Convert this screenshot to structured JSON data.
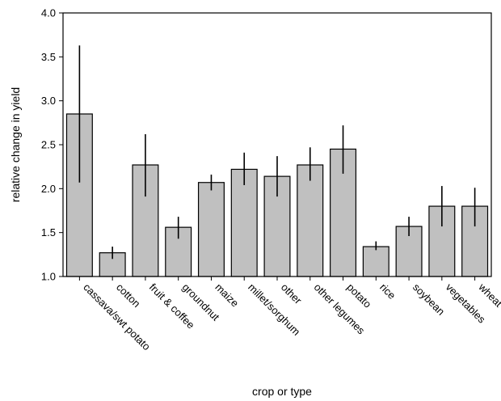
{
  "chart_data": {
    "type": "bar",
    "title": "",
    "xlabel": "crop or type",
    "ylabel": "relative change in yield",
    "ylim": [
      1.0,
      4.0
    ],
    "yticks": [
      "1.0",
      "1.5",
      "2.0",
      "2.5",
      "3.0",
      "3.5",
      "4.0"
    ],
    "categories": [
      "cassava/swt potato",
      "cotton",
      "fruit & coffee",
      "groundnut",
      "maize",
      "millet/sorghum",
      "other",
      "other legumes",
      "potato",
      "rice",
      "soybean",
      "vegetables",
      "wheat"
    ],
    "values": [
      2.85,
      1.27,
      2.27,
      1.56,
      2.07,
      2.22,
      2.14,
      2.27,
      2.45,
      1.34,
      1.57,
      1.8,
      1.8
    ],
    "error_low": [
      2.07,
      1.2,
      1.91,
      1.43,
      1.98,
      2.04,
      1.91,
      2.09,
      2.17,
      1.3,
      1.46,
      1.57,
      1.57
    ],
    "error_high": [
      3.63,
      1.34,
      2.62,
      1.68,
      2.16,
      2.41,
      2.37,
      2.47,
      2.72,
      1.4,
      1.68,
      2.03,
      2.01
    ],
    "grid": false,
    "colors": {
      "bar_fill": "#c0c0c0",
      "bar_stroke": "#000000"
    }
  }
}
